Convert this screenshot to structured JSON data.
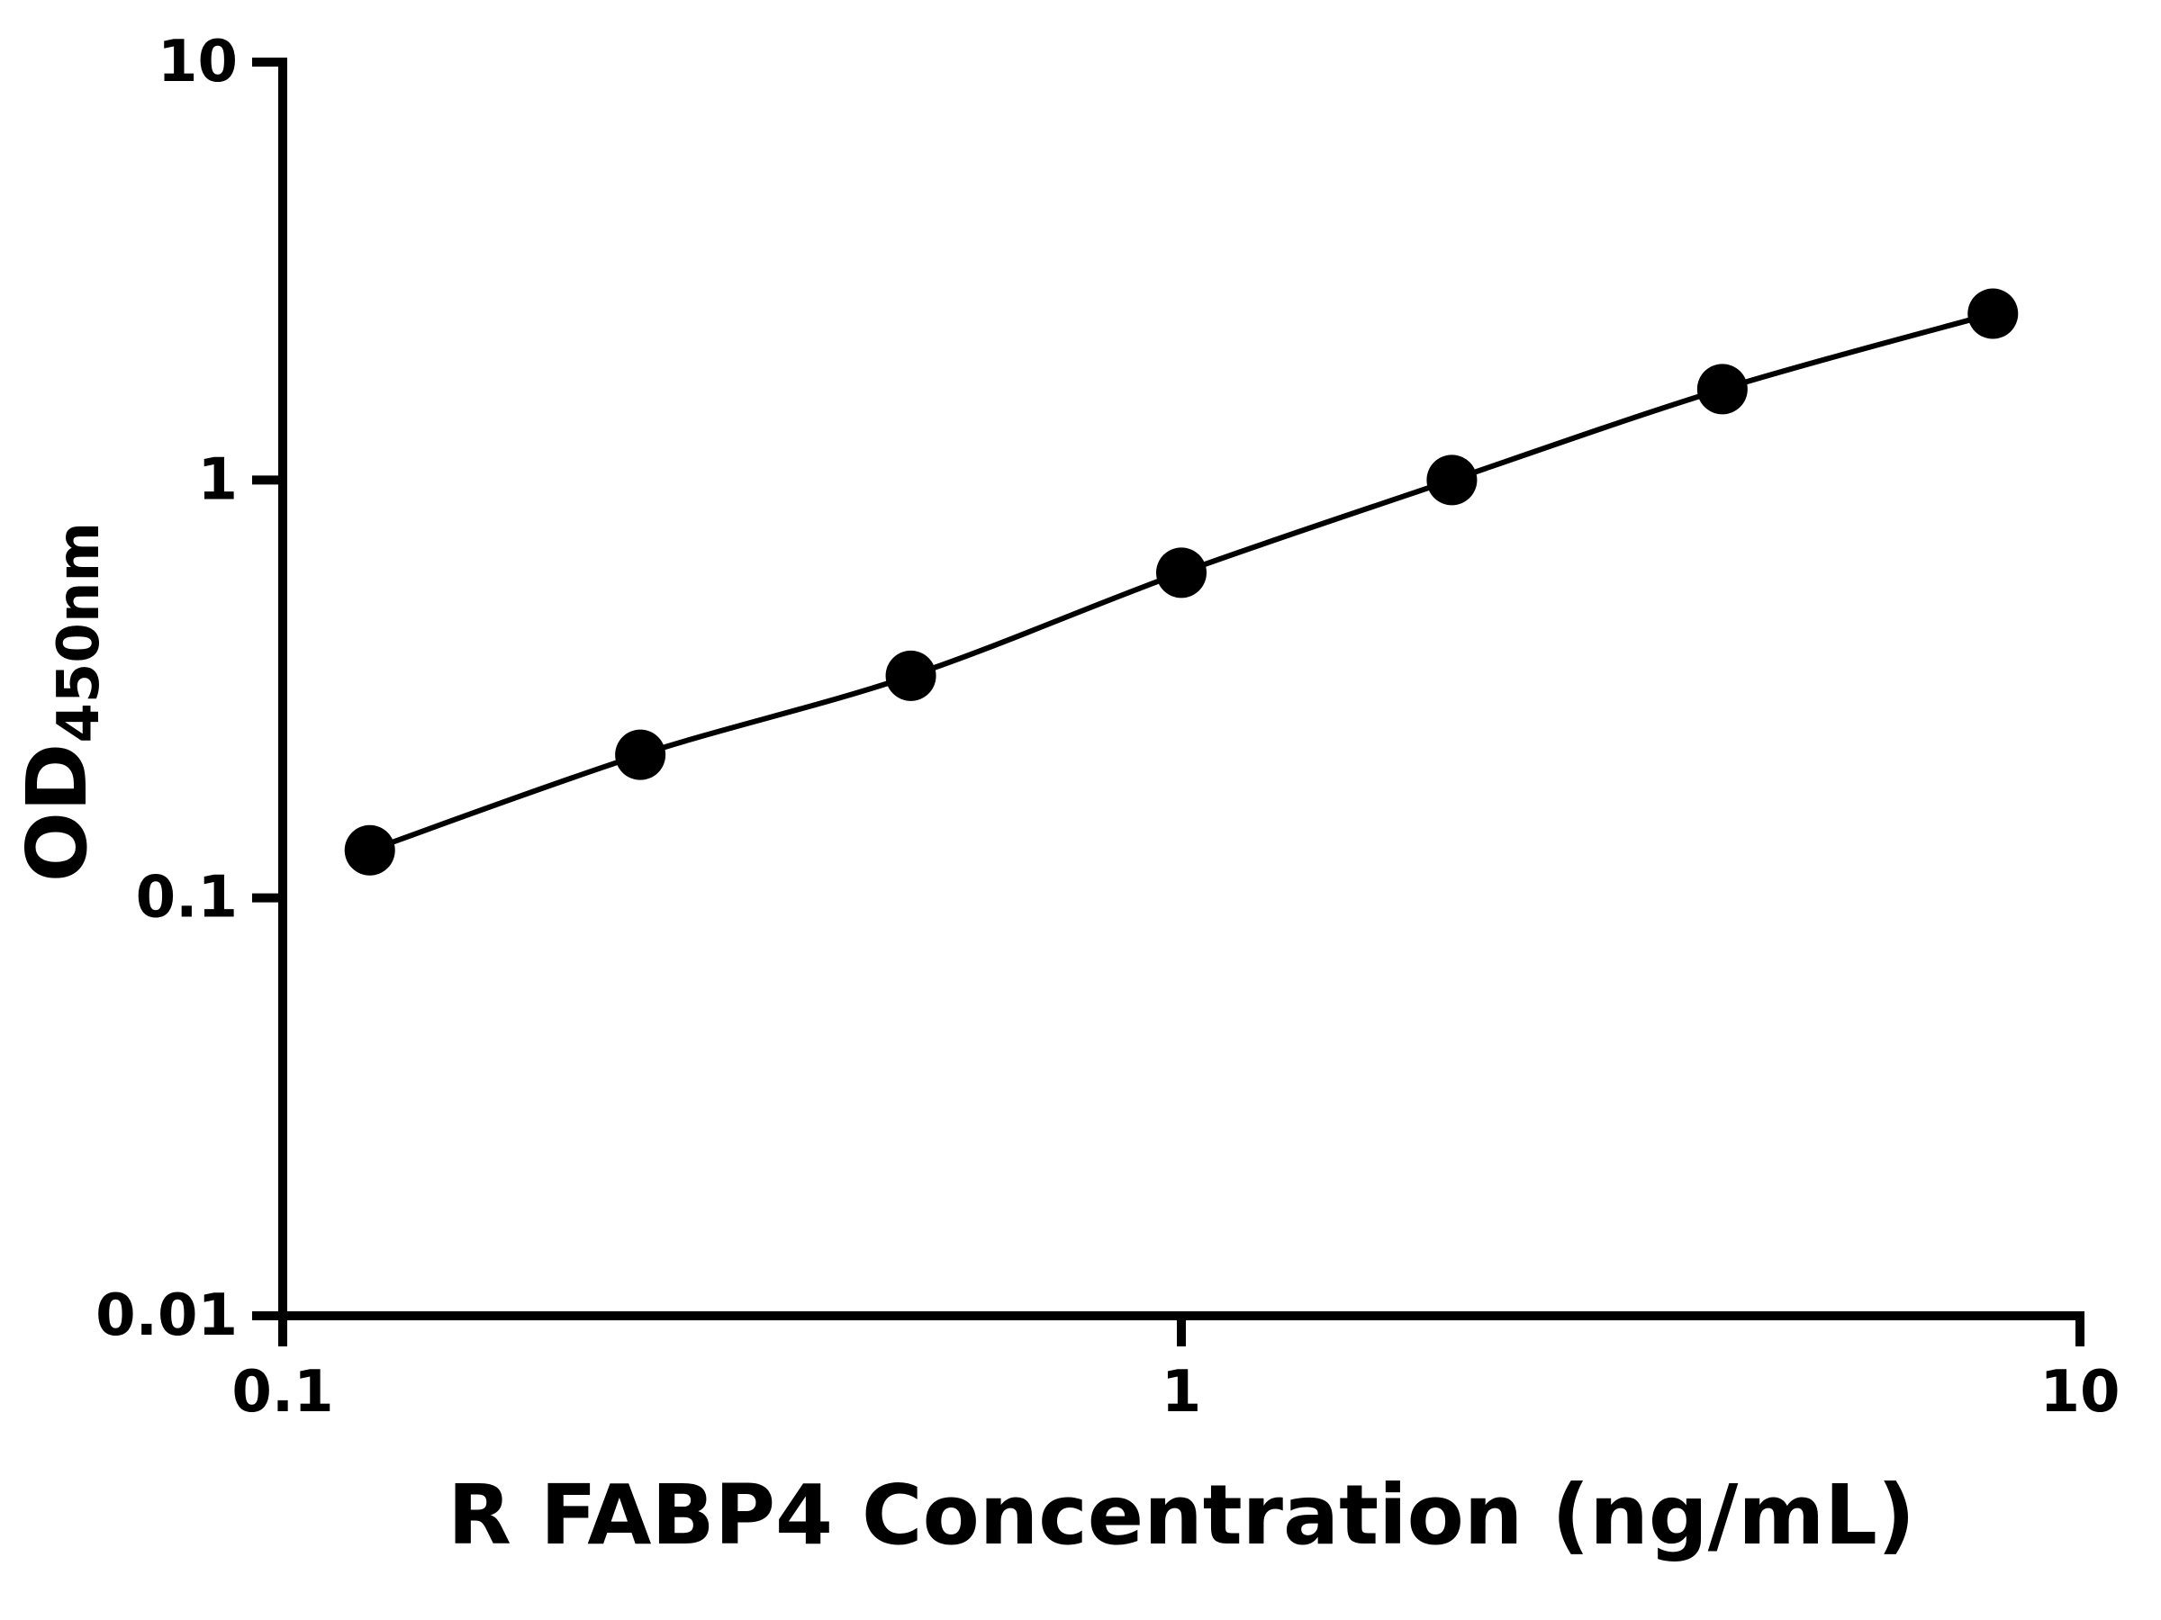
{
  "chart_data": {
    "type": "line",
    "title": "",
    "xlabel": "R FABP4 Concentration (ng/mL)",
    "ylabel_main": "OD",
    "ylabel_sub": "450nm",
    "x": [
      0.125,
      0.25,
      0.5,
      1,
      2,
      4,
      8
    ],
    "y": [
      0.13,
      0.22,
      0.34,
      0.6,
      1.0,
      1.65,
      2.5
    ],
    "xscale": "log",
    "yscale": "log",
    "xlim": [
      0.1,
      10
    ],
    "ylim": [
      0.01,
      10
    ],
    "x_tick_values": [
      0.1,
      1,
      10
    ],
    "x_tick_labels": [
      "0.1",
      "1",
      "10"
    ],
    "y_tick_values": [
      0.01,
      0.1,
      1,
      10
    ],
    "y_tick_labels": [
      "0.01",
      "0.1",
      "1",
      "10"
    ],
    "grid": false,
    "legend": false,
    "line_color": "#000000",
    "marker_color": "#000000",
    "background_color": "#ffffff"
  }
}
